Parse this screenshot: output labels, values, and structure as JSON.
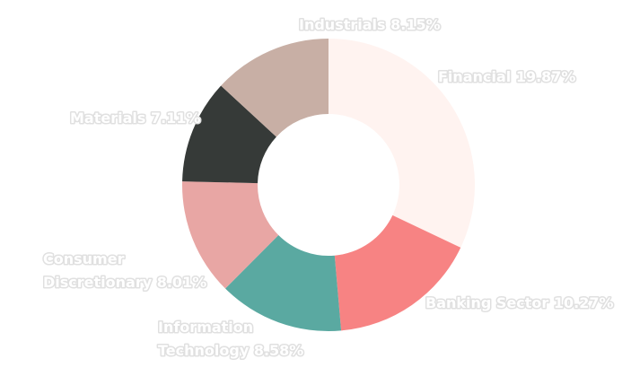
{
  "chart_data": {
    "type": "pie",
    "donut": true,
    "title": "",
    "legend": "none",
    "slices": [
      {
        "name": "Financial",
        "label": "Financial 19.87%",
        "value": 19.87,
        "color": "#fff3f0"
      },
      {
        "name": "Banking Sector",
        "label": "Banking Sector 10.27%",
        "value": 10.27,
        "color": "#f78383"
      },
      {
        "name": "Information Technology",
        "label_lines": [
          "Information",
          "Technology 8.58%"
        ],
        "value": 8.58,
        "color": "#5aa9a1"
      },
      {
        "name": "Consumer Discretionary",
        "label_lines": [
          "Consumer",
          "Discretionary 8.01%"
        ],
        "value": 8.01,
        "color": "#e8a6a4"
      },
      {
        "name": "Materials",
        "label": "Materials 7.11%",
        "value": 7.11,
        "color": "#363a38"
      },
      {
        "name": "Industrials",
        "label": "Industrials 8.15%",
        "value": 8.15,
        "color": "#c8afa5"
      }
    ]
  }
}
